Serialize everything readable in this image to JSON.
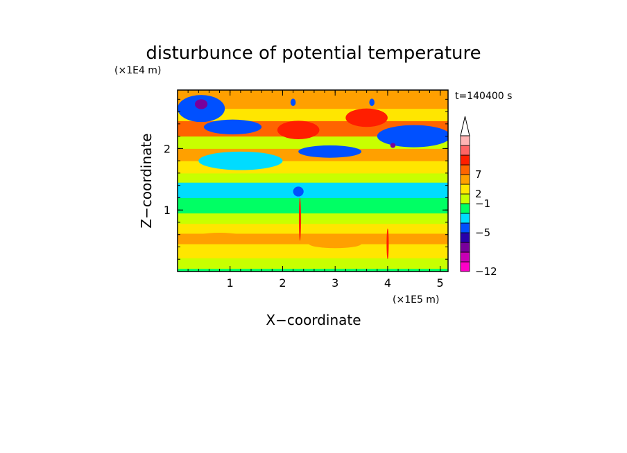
{
  "chart_data": {
    "type": "heatmap",
    "title": "disturbunce of potential temperature",
    "time_label": "t=140400 s",
    "xlabel": "X−coordinate",
    "ylabel": "Z−coordinate",
    "x_unit": "(×1E5 m)",
    "y_unit": "(×1E4 m)",
    "xlim": [
      0,
      5.15
    ],
    "ylim": [
      0,
      2.95
    ],
    "x_ticks": [
      "1",
      "2",
      "3",
      "4",
      "5"
    ],
    "y_ticks": [
      "1",
      "2"
    ],
    "colorbar": {
      "colors": [
        "#ff00c8",
        "#c800b4",
        "#78009c",
        "#2800aa",
        "#0050ff",
        "#00dcff",
        "#00ff64",
        "#c8ff00",
        "#ffe600",
        "#ffa000",
        "#ff6400",
        "#ff1e00",
        "#ff6464",
        "#ffb4b4"
      ],
      "tick_labels": [
        {
          "level": 0,
          "text": "−12"
        },
        {
          "level": 4,
          "text": "−5"
        },
        {
          "level": 7,
          "text": "−1"
        },
        {
          "level": 8,
          "text": "2"
        },
        {
          "level": 10,
          "text": "7"
        }
      ],
      "extend_top": true
    },
    "field_bands": [
      {
        "z0": 0.0,
        "z1": 0.05,
        "class": 6
      },
      {
        "z0": 0.05,
        "z1": 0.22,
        "class": 7
      },
      {
        "z0": 0.22,
        "z1": 0.45,
        "class": 8
      },
      {
        "z0": 0.45,
        "z1": 0.62,
        "class": 9
      },
      {
        "z0": 0.62,
        "z1": 0.78,
        "class": 8
      },
      {
        "z0": 0.78,
        "z1": 0.95,
        "class": 7
      },
      {
        "z0": 0.95,
        "z1": 1.2,
        "class": 6
      },
      {
        "z0": 1.2,
        "z1": 1.45,
        "class": 5
      },
      {
        "z0": 1.45,
        "z1": 1.6,
        "class": 7
      },
      {
        "z0": 1.6,
        "z1": 1.8,
        "class": 8
      },
      {
        "z0": 1.8,
        "z1": 2.0,
        "class": 9
      },
      {
        "z0": 2.0,
        "z1": 2.2,
        "class": 7
      },
      {
        "z0": 2.2,
        "z1": 2.45,
        "class": 10
      },
      {
        "z0": 2.45,
        "z1": 2.65,
        "class": 8
      },
      {
        "z0": 2.65,
        "z1": 2.95,
        "class": 9
      }
    ],
    "field_blobs": [
      {
        "x": 0.45,
        "z": 2.65,
        "rx": 0.45,
        "rz": 0.22,
        "class": 4
      },
      {
        "x": 0.45,
        "z": 2.72,
        "rx": 0.12,
        "rz": 0.08,
        "class": 2
      },
      {
        "x": 1.05,
        "z": 2.35,
        "rx": 0.55,
        "rz": 0.12,
        "class": 4
      },
      {
        "x": 4.5,
        "z": 2.2,
        "rx": 0.7,
        "rz": 0.18,
        "class": 4
      },
      {
        "x": 4.1,
        "z": 2.05,
        "rx": 0.05,
        "rz": 0.04,
        "class": 2
      },
      {
        "x": 2.9,
        "z": 1.95,
        "rx": 0.6,
        "rz": 0.1,
        "class": 4
      },
      {
        "x": 2.3,
        "z": 1.3,
        "rx": 0.1,
        "rz": 0.08,
        "class": 4
      },
      {
        "x": 2.3,
        "z": 2.3,
        "rx": 0.4,
        "rz": 0.15,
        "class": 11
      },
      {
        "x": 3.6,
        "z": 2.5,
        "rx": 0.4,
        "rz": 0.15,
        "class": 11
      },
      {
        "x": 2.2,
        "z": 2.75,
        "rx": 0.05,
        "rz": 0.06,
        "class": 4
      },
      {
        "x": 3.7,
        "z": 2.75,
        "rx": 0.05,
        "rz": 0.06,
        "class": 4
      },
      {
        "x": 1.2,
        "z": 1.8,
        "rx": 0.8,
        "rz": 0.15,
        "class": 5
      },
      {
        "x": 0.8,
        "z": 0.55,
        "rx": 0.5,
        "rz": 0.08,
        "class": 9
      },
      {
        "x": 3.0,
        "z": 0.45,
        "rx": 0.5,
        "rz": 0.07,
        "class": 9
      },
      {
        "x": 2.33,
        "z": 0.85,
        "rx": 0.02,
        "rz": 0.35,
        "class": 11
      },
      {
        "x": 4.0,
        "z": 0.45,
        "rx": 0.02,
        "rz": 0.25,
        "class": 11
      }
    ]
  }
}
